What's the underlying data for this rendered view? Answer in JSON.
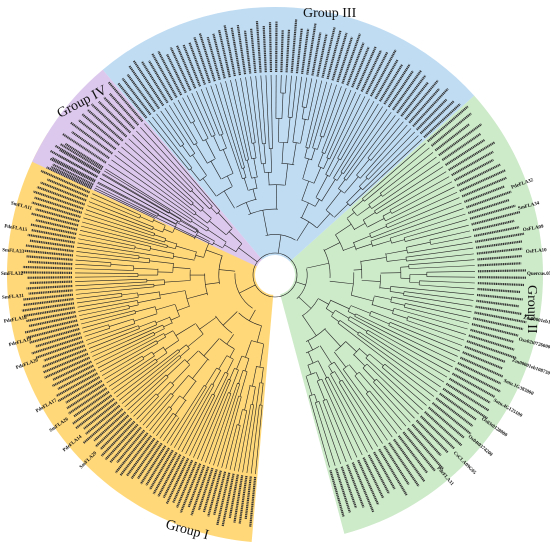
{
  "groups": [
    {
      "id": "I",
      "label": "Group I",
      "color": "#ffd87a"
    },
    {
      "id": "II",
      "label": "Group II",
      "color": "#cdeac9"
    },
    {
      "id": "III",
      "label": "Group III",
      "color": "#bfdcf3"
    },
    {
      "id": "IV",
      "label": "Group IV",
      "color": "#dcc8ec"
    }
  ],
  "sample_leaf_labels": [
    "PdeFLA20",
    "PdeFLA19",
    "PdeFLA18",
    "SmFLA31",
    "SmFLA32",
    "SmFLA33",
    "PdeFLA15",
    "SmFLA11",
    "PdeFLA17",
    "SmFLA26",
    "PdeFLA14",
    "SmFLA29",
    "Zm00001eb108720",
    "Osa02t0726000",
    "Zm00001eb108730",
    "Sotu.1G383000",
    "Sotu.4G125100",
    "Os03t0128000",
    "Os04t0374200",
    "CsCLA09G05",
    "PdeFLA31",
    "PdeFLA32",
    "SmFLA34",
    "OsFLA09",
    "OsFLA10",
    "Quercus.05G08000"
  ]
}
